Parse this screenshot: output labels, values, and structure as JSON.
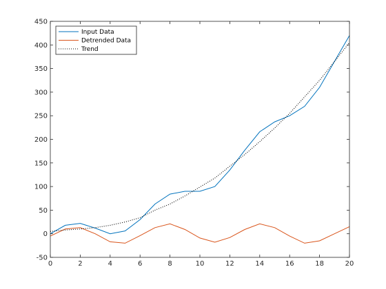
{
  "chart_data": {
    "type": "line",
    "title": "",
    "xlabel": "",
    "ylabel": "",
    "xlim": [
      0,
      20
    ],
    "ylim": [
      -50,
      450
    ],
    "xticks": [
      0,
      2,
      4,
      6,
      8,
      10,
      12,
      14,
      16,
      18,
      20
    ],
    "yticks": [
      -50,
      0,
      50,
      100,
      150,
      200,
      250,
      300,
      350,
      400,
      450
    ],
    "grid": false,
    "legend": {
      "position": "top-left",
      "entries": [
        "Input Data",
        "Detrended Data",
        "Trend"
      ]
    },
    "x": [
      0,
      1,
      2,
      3,
      4,
      5,
      6,
      7,
      8,
      9,
      10,
      11,
      12,
      13,
      14,
      15,
      16,
      17,
      18,
      19,
      20
    ],
    "series": [
      {
        "name": "Input Data",
        "color": "#0072BD",
        "style": "solid",
        "values": [
          0,
          18,
          22,
          12,
          0,
          6,
          30,
          63,
          84,
          90,
          90,
          100,
          135,
          177,
          216,
          237,
          250,
          270,
          310,
          365,
          420
        ]
      },
      {
        "name": "Detrended Data",
        "color": "#D95319",
        "style": "solid",
        "values": [
          -5,
          10,
          13,
          0,
          -17,
          -20,
          -4,
          13,
          21,
          9,
          -9,
          -18,
          -8,
          9,
          21,
          13,
          -5,
          -20,
          -15,
          0,
          15
        ]
      },
      {
        "name": "Trend",
        "color": "#000000",
        "style": "dotted",
        "values": [
          5,
          8,
          10,
          13,
          18,
          25,
          34,
          50,
          63,
          80,
          99,
          118,
          143,
          168,
          195,
          224,
          255,
          290,
          325,
          365,
          405
        ]
      }
    ]
  }
}
